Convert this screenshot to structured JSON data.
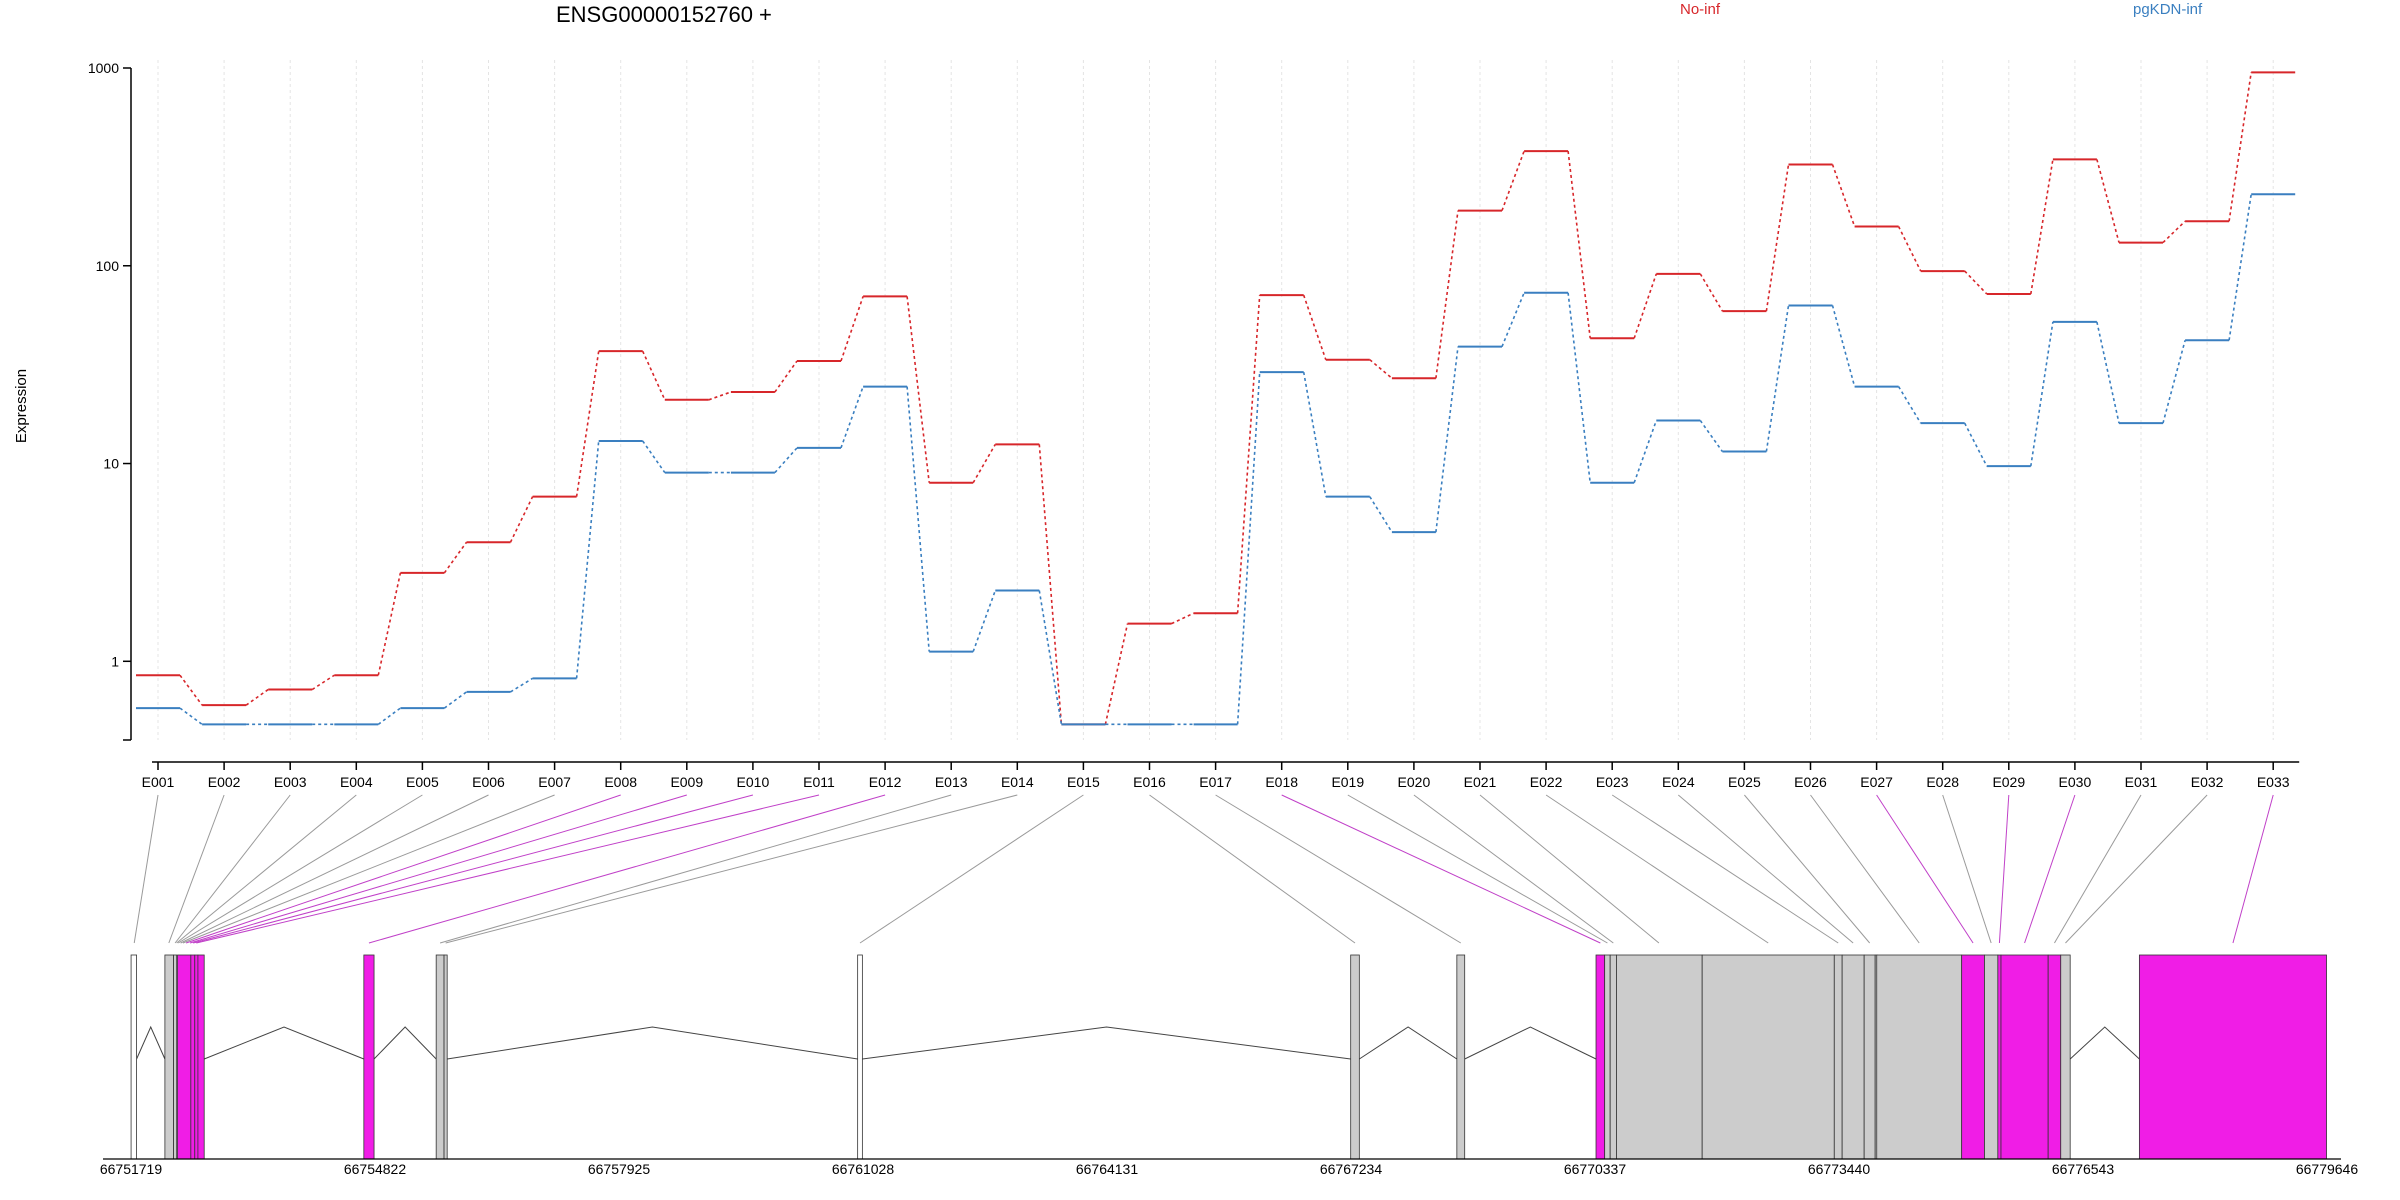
{
  "chart_data": {
    "type": "line",
    "title": "ENSG00000152760 +",
    "ylabel": "Expression",
    "yscale": "log",
    "ylim": [
      0.4,
      1000
    ],
    "yticks": [
      1,
      10,
      100,
      1000
    ],
    "ytick_labels": [
      "1",
      "10",
      "100",
      "1000"
    ],
    "categories": [
      "E001",
      "E002",
      "E003",
      "E004",
      "E005",
      "E006",
      "E007",
      "E008",
      "E009",
      "E010",
      "E011",
      "E012",
      "E013",
      "E014",
      "E015",
      "E016",
      "E017",
      "E018",
      "E019",
      "E020",
      "E021",
      "E022",
      "E023",
      "E024",
      "E025",
      "E026",
      "E027",
      "E028",
      "E029",
      "E030",
      "E031",
      "E032",
      "E033"
    ],
    "series": [
      {
        "name": "No-inf",
        "color": "#d7262a",
        "values": [
          0.85,
          0.6,
          0.72,
          0.85,
          2.8,
          4.0,
          6.8,
          37,
          21,
          23,
          33,
          70,
          8.0,
          12.5,
          0.48,
          1.55,
          1.75,
          71,
          33.5,
          27,
          190,
          380,
          43,
          91,
          59,
          325,
          158,
          94,
          72,
          345,
          131,
          168,
          950
        ]
      },
      {
        "name": "pgKDN-inf",
        "color": "#3a7fc0",
        "values": [
          0.58,
          0.48,
          0.48,
          0.48,
          0.58,
          0.7,
          0.82,
          13,
          9.0,
          9.0,
          12,
          24.5,
          1.12,
          2.28,
          0.48,
          0.48,
          0.48,
          29,
          6.8,
          4.5,
          39,
          73,
          8.0,
          16.5,
          11.5,
          63,
          24.5,
          16,
          9.7,
          52,
          16,
          42,
          230
        ]
      }
    ],
    "legend": "top-right",
    "gene_model": {
      "coord_labels": [
        "66751719",
        "66754822",
        "66757925",
        "66761028",
        "66764131",
        "66767234",
        "66770337",
        "66773440",
        "66776543",
        "66779646"
      ],
      "start": 66751719,
      "end": 66779646,
      "exon_colors": {
        "normal": "#cccccc",
        "highlighted": "#f01de6"
      },
      "blocks": [
        {
          "start": 66751720,
          "end": 66751790,
          "kind": "white"
        },
        {
          "start": 66752150,
          "end": 66752260,
          "kind": "normal"
        },
        {
          "start": 66752260,
          "end": 66752300,
          "kind": "normal"
        },
        {
          "start": 66752310,
          "end": 66752480,
          "kind": "highlighted"
        },
        {
          "start": 66752480,
          "end": 66752530,
          "kind": "highlighted"
        },
        {
          "start": 66752530,
          "end": 66752570,
          "kind": "highlighted"
        },
        {
          "start": 66752570,
          "end": 66752650,
          "kind": "highlighted"
        },
        {
          "start": 66754680,
          "end": 66754810,
          "kind": "highlighted"
        },
        {
          "start": 66755600,
          "end": 66755700,
          "kind": "normal"
        },
        {
          "start": 66755700,
          "end": 66755740,
          "kind": "normal"
        },
        {
          "start": 66760960,
          "end": 66761020,
          "kind": "white"
        },
        {
          "start": 66767230,
          "end": 66767340,
          "kind": "normal"
        },
        {
          "start": 66768580,
          "end": 66768680,
          "kind": "normal"
        },
        {
          "start": 66770350,
          "end": 66770460,
          "kind": "highlighted"
        },
        {
          "start": 66770460,
          "end": 66770530,
          "kind": "normal"
        },
        {
          "start": 66770530,
          "end": 66770610,
          "kind": "normal"
        },
        {
          "start": 66770610,
          "end": 66771700,
          "kind": "normal"
        },
        {
          "start": 66771700,
          "end": 66773380,
          "kind": "normal"
        },
        {
          "start": 66773380,
          "end": 66773480,
          "kind": "normal"
        },
        {
          "start": 66773480,
          "end": 66773760,
          "kind": "normal"
        },
        {
          "start": 66773760,
          "end": 66773900,
          "kind": "normal"
        },
        {
          "start": 66773900,
          "end": 66773920,
          "kind": "normal"
        },
        {
          "start": 66773920,
          "end": 66775000,
          "kind": "normal"
        },
        {
          "start": 66775000,
          "end": 66775290,
          "kind": "highlighted"
        },
        {
          "start": 66775290,
          "end": 66775460,
          "kind": "normal"
        },
        {
          "start": 66775460,
          "end": 66775500,
          "kind": "highlighted"
        },
        {
          "start": 66775500,
          "end": 66776100,
          "kind": "highlighted"
        },
        {
          "start": 66776100,
          "end": 66776260,
          "kind": "highlighted"
        },
        {
          "start": 66776260,
          "end": 66776380,
          "kind": "normal"
        },
        {
          "start": 66777260,
          "end": 66779640,
          "kind": "highlighted"
        }
      ],
      "intron_peaks": [
        [
          66751790,
          66752150
        ],
        [
          66752650,
          66754680
        ],
        [
          66754810,
          66755600
        ],
        [
          66755740,
          66760960
        ],
        [
          66761020,
          66767230
        ],
        [
          66767340,
          66768580
        ],
        [
          66768680,
          66770350
        ],
        [
          66776380,
          66777260
        ]
      ],
      "connector_targets": [
        {
          "pos": 66751760,
          "kind": "normal"
        },
        {
          "pos": 66752200,
          "kind": "normal"
        },
        {
          "pos": 66752280,
          "kind": "normal"
        },
        {
          "pos": 66752300,
          "kind": "normal"
        },
        {
          "pos": 66752320,
          "kind": "normal"
        },
        {
          "pos": 66752350,
          "kind": "normal"
        },
        {
          "pos": 66752380,
          "kind": "normal"
        },
        {
          "pos": 66752420,
          "kind": "highlighted"
        },
        {
          "pos": 66752470,
          "kind": "highlighted"
        },
        {
          "pos": 66752510,
          "kind": "highlighted"
        },
        {
          "pos": 66752550,
          "kind": "highlighted"
        },
        {
          "pos": 66754745,
          "kind": "highlighted"
        },
        {
          "pos": 66755650,
          "kind": "normal"
        },
        {
          "pos": 66755720,
          "kind": "normal"
        },
        {
          "pos": 66760990,
          "kind": "normal"
        },
        {
          "pos": 66767285,
          "kind": "normal"
        },
        {
          "pos": 66768630,
          "kind": "normal"
        },
        {
          "pos": 66770405,
          "kind": "highlighted"
        },
        {
          "pos": 66770495,
          "kind": "normal"
        },
        {
          "pos": 66770570,
          "kind": "normal"
        },
        {
          "pos": 66771150,
          "kind": "normal"
        },
        {
          "pos": 66772540,
          "kind": "normal"
        },
        {
          "pos": 66773430,
          "kind": "normal"
        },
        {
          "pos": 66773620,
          "kind": "normal"
        },
        {
          "pos": 66773830,
          "kind": "normal"
        },
        {
          "pos": 66774460,
          "kind": "normal"
        },
        {
          "pos": 66775145,
          "kind": "highlighted"
        },
        {
          "pos": 66775375,
          "kind": "normal"
        },
        {
          "pos": 66775480,
          "kind": "highlighted"
        },
        {
          "pos": 66775800,
          "kind": "highlighted"
        },
        {
          "pos": 66776180,
          "kind": "normal"
        },
        {
          "pos": 66776320,
          "kind": "normal"
        },
        {
          "pos": 66778450,
          "kind": "highlighted"
        }
      ]
    }
  }
}
